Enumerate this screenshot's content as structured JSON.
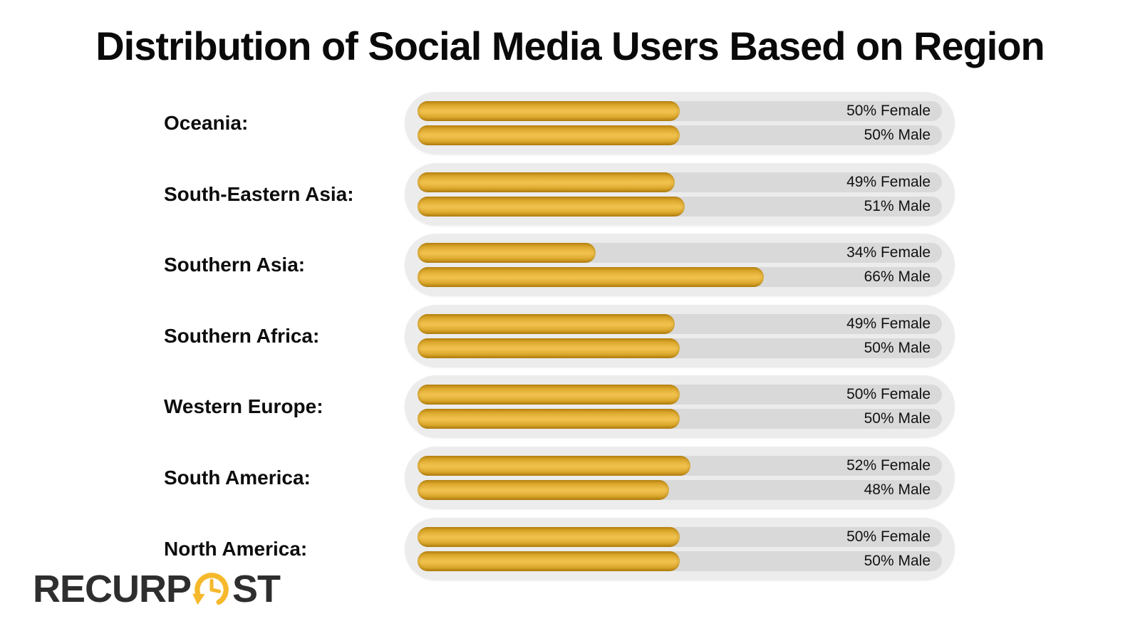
{
  "title": "Distribution of Social Media Users Based on Region",
  "logo": {
    "prefix": "RECURP",
    "suffix": "ST",
    "icon": "clock-history-icon",
    "text_color": "#2e2e2e",
    "icon_color": "#f6b92c"
  },
  "colors": {
    "background": "#ffffff",
    "bar_gold_mid": "#efbf4a",
    "bar_gold_edge": "#bc8812",
    "track_gray": "#d9d9d9",
    "group_gray": "#ececec",
    "text": "#111111"
  },
  "chart_data": {
    "type": "bar",
    "orientation": "horizontal",
    "title": "Distribution of Social Media Users Based on Region",
    "xlabel": "",
    "ylabel": "",
    "xlim": [
      0,
      100
    ],
    "grid": false,
    "legend_position": "none",
    "unit": "%",
    "categories": [
      "Oceania:",
      "South-Eastern Asia:",
      "Southern Asia:",
      "Southern Africa:",
      "Western Europe:",
      "South America:",
      "North America:"
    ],
    "series": [
      {
        "name": "Female",
        "values": [
          50,
          49,
          34,
          49,
          50,
          52,
          50
        ],
        "labels": [
          "50% Female",
          "49% Female",
          "34% Female",
          "49% Female",
          "50% Female",
          "52% Female",
          "50% Female"
        ]
      },
      {
        "name": "Male",
        "values": [
          50,
          51,
          66,
          50,
          50,
          48,
          50
        ],
        "labels": [
          "50% Male",
          "51% Male",
          "66% Male",
          "50% Male",
          "50% Male",
          "48% Male",
          "50% Male"
        ]
      }
    ]
  }
}
